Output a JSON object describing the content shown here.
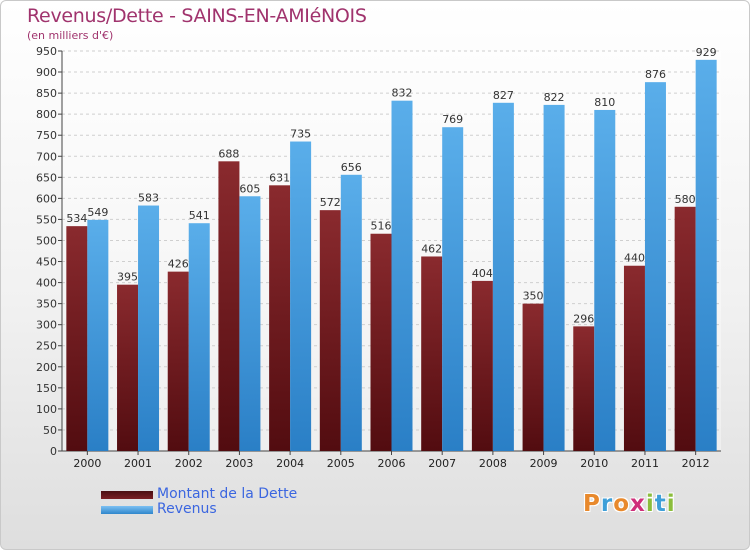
{
  "chart_data": {
    "type": "bar",
    "title": "Revenus/Dette - SAINS-EN-AMIéNOIS",
    "subtitle": "(en milliers d'€)",
    "categories": [
      "2000",
      "2001",
      "2002",
      "2003",
      "2004",
      "2005",
      "2006",
      "2007",
      "2008",
      "2009",
      "2010",
      "2011",
      "2012"
    ],
    "series": [
      {
        "name": "Montant de la Dette",
        "color": "#7a1f24",
        "values": [
          534,
          395,
          426,
          688,
          631,
          572,
          516,
          462,
          404,
          350,
          296,
          440,
          580
        ]
      },
      {
        "name": "Revenus",
        "color": "#4aa1e4",
        "values": [
          549,
          583,
          541,
          605,
          735,
          656,
          832,
          769,
          827,
          822,
          810,
          876,
          929
        ]
      }
    ],
    "ylim": [
      0,
      950
    ],
    "ytick_step": 50,
    "grid": true,
    "legend_position": "bottom-left"
  },
  "brand": {
    "letters": [
      "P",
      "r",
      "o",
      "x",
      "i",
      "t",
      "i"
    ],
    "colors": [
      "#e8892c",
      "#3e9fd8",
      "#e8892c",
      "#cf2f7a",
      "#8bbd3c",
      "#3e9fd8",
      "#8bbd3c"
    ]
  }
}
